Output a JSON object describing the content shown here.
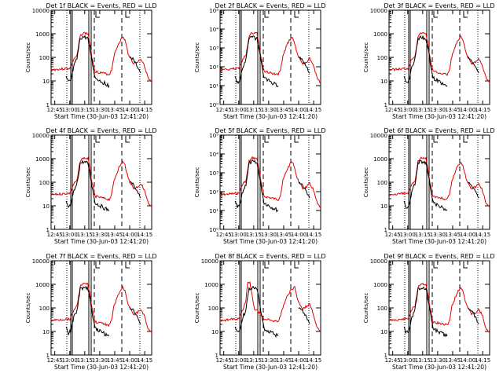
{
  "chart_data": [
    {
      "title": "Det 1f BLACK = Events, RED = LLD",
      "ylabel": "Counts/sec",
      "xlabel": "Start Time (30-Jun-03 12:41:20)",
      "yticks": [
        "1",
        "10",
        "100",
        "1000",
        "10000"
      ],
      "xticks": [
        "12:45",
        "13:00",
        "13:15",
        "13:30",
        "13:45",
        "14:00",
        "14:15"
      ]
    },
    {
      "title": "Det 2f BLACK = Events, RED = LLD",
      "ylabel": "Counts/sec",
      "xlabel": "Start Time (30-Jun-03 12:41:20)",
      "yticks": [
        "10⁰",
        "10¹",
        "10²",
        "10³",
        "10⁴",
        "10⁵"
      ],
      "xticks": [
        "12:45",
        "13:00",
        "13:15",
        "13:30",
        "13:45",
        "14:00",
        "14:15"
      ]
    },
    {
      "title": "Det 3f BLACK = Events, RED = LLD",
      "ylabel": "Counts/sec",
      "xlabel": "Start Time (30-Jun-03 12:41:20)",
      "yticks": [
        "1",
        "10",
        "100",
        "1000",
        "10000"
      ],
      "xticks": [
        "12:45",
        "13:00",
        "13:15",
        "13:30",
        "13:45",
        "14:00",
        "14:15"
      ]
    },
    {
      "title": "Det 4f BLACK = Events, RED = LLD",
      "ylabel": "Counts/sec",
      "xlabel": "Start Time (30-Jun-03 12:41:20)",
      "yticks": [
        "1",
        "10",
        "100",
        "1000",
        "10000"
      ],
      "xticks": [
        "12:45",
        "13:00",
        "13:15",
        "13:30",
        "13:45",
        "14:00",
        "14:15"
      ]
    },
    {
      "title": "Det 5f BLACK = Events, RED = LLD",
      "ylabel": "Counts/sec",
      "xlabel": "Start Time (30-Jun-03 12:41:20)",
      "yticks": [
        "10⁰",
        "10¹",
        "10²",
        "10³",
        "10⁴",
        "10⁵"
      ],
      "xticks": [
        "12:45",
        "13:00",
        "13:15",
        "13:30",
        "13:45",
        "14:00",
        "14:15"
      ]
    },
    {
      "title": "Det 6f BLACK = Events, RED = LLD",
      "ylabel": "Counts/sec",
      "xlabel": "Start Time (30-Jun-03 12:41:20)",
      "yticks": [
        "1",
        "10",
        "100",
        "1000",
        "10000"
      ],
      "xticks": [
        "12:45",
        "13:00",
        "13:15",
        "13:30",
        "13:45",
        "14:00",
        "14:15"
      ]
    },
    {
      "title": "Det 7f BLACK = Events, RED = LLD",
      "ylabel": "Counts/sec",
      "xlabel": "Start Time (30-Jun-03 12:41:20)",
      "yticks": [
        "1",
        "10",
        "100",
        "1000",
        "10000"
      ],
      "xticks": [
        "12:45",
        "13:00",
        "13:15",
        "13:30",
        "13:45",
        "14:00",
        "14:15"
      ]
    },
    {
      "title": "Det 8f BLACK = Events, RED = LLD",
      "ylabel": "Counts/sec",
      "xlabel": "Start Time (30-Jun-03 12:41:20)",
      "yticks": [
        "1",
        "10",
        "100",
        "1000",
        "10000"
      ],
      "xticks": [
        "12:45",
        "13:00",
        "13:15",
        "13:30",
        "13:45",
        "14:00",
        "14:15"
      ]
    },
    {
      "title": "Det 9f BLACK = Events, RED = LLD",
      "ylabel": "Counts/sec",
      "xlabel": "Start Time (30-Jun-03 12:41:20)",
      "yticks": [
        "1",
        "10",
        "100",
        "1000",
        "10000"
      ],
      "xticks": [
        "12:45",
        "13:00",
        "13:15",
        "13:30",
        "13:45",
        "14:00",
        "14:15"
      ]
    }
  ],
  "colors": {
    "events": "#000000",
    "lld": "#e00000",
    "background": "#ffffff"
  }
}
